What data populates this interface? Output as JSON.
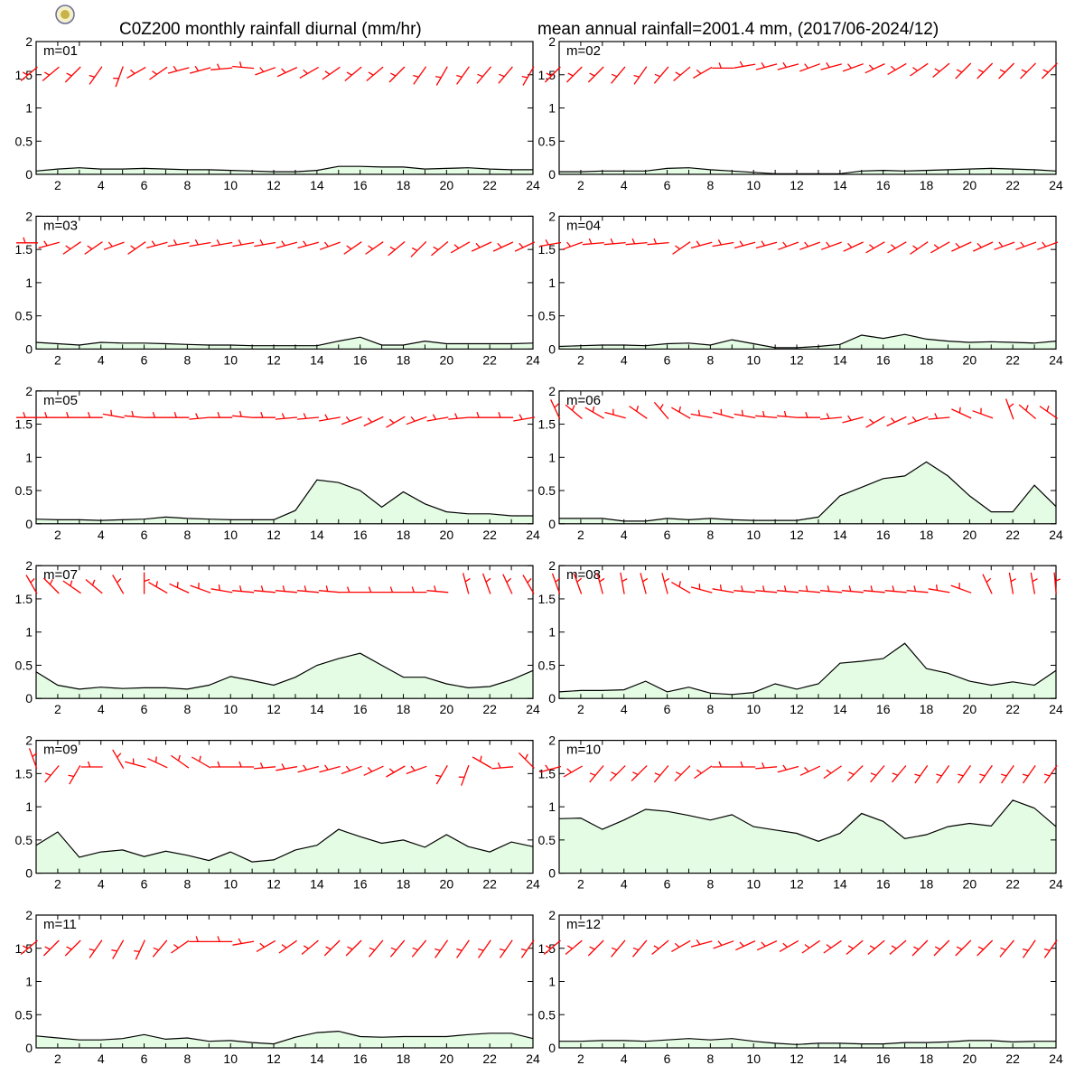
{
  "header": {
    "title_left": "C0Z200 monthly rainfall diurnal (mm/hr)",
    "title_right": "mean annual rainfall=2001.4 mm, (2017/06-2024/12)",
    "logo": "station-seal-icon"
  },
  "colors": {
    "fill": "#e4fce4",
    "line": "#000000",
    "barb": "#ff0000",
    "frame": "#000000"
  },
  "chart_data": {
    "type": "area",
    "x": [
      1,
      2,
      3,
      4,
      5,
      6,
      7,
      8,
      9,
      10,
      11,
      12,
      13,
      14,
      15,
      16,
      17,
      18,
      19,
      20,
      21,
      22,
      23,
      24
    ],
    "x_ticks": [
      "2",
      "4",
      "6",
      "8",
      "10",
      "12",
      "14",
      "16",
      "18",
      "20",
      "22",
      "24"
    ],
    "y_ticks": [
      "0",
      "0.5",
      "1",
      "1.5",
      "2"
    ],
    "ylim": [
      0,
      2
    ],
    "xlim": [
      1,
      24
    ],
    "panels": [
      {
        "label": "m=01",
        "values": [
          0.05,
          0.08,
          0.1,
          0.08,
          0.08,
          0.09,
          0.08,
          0.07,
          0.07,
          0.06,
          0.05,
          0.04,
          0.04,
          0.06,
          0.12,
          0.12,
          0.11,
          0.11,
          0.08,
          0.09,
          0.1,
          0.08,
          0.07,
          0.07
        ],
        "wind_dir": [
          230,
          230,
          225,
          215,
          200,
          240,
          235,
          255,
          255,
          265,
          275,
          250,
          245,
          240,
          235,
          230,
          230,
          225,
          215,
          210,
          215,
          220,
          220,
          210
        ]
      },
      {
        "label": "m=02",
        "values": [
          0.04,
          0.04,
          0.05,
          0.05,
          0.05,
          0.09,
          0.1,
          0.07,
          0.05,
          0.03,
          0.01,
          0.01,
          0.01,
          0.01,
          0.05,
          0.06,
          0.05,
          0.06,
          0.07,
          0.08,
          0.09,
          0.08,
          0.07,
          0.05
        ],
        "wind_dir": [
          225,
          225,
          225,
          220,
          215,
          220,
          230,
          240,
          270,
          260,
          255,
          255,
          250,
          255,
          250,
          245,
          240,
          235,
          230,
          225,
          225,
          225,
          225,
          225
        ],
        "barb_rows": [
          0,
          0,
          0,
          0,
          0,
          0,
          0,
          0,
          0,
          1,
          1,
          1,
          1,
          1,
          1,
          1,
          1,
          1,
          1,
          1,
          1,
          1,
          1,
          1
        ]
      },
      {
        "label": "m=03",
        "values": [
          0.1,
          0.08,
          0.06,
          0.1,
          0.09,
          0.09,
          0.08,
          0.07,
          0.06,
          0.06,
          0.05,
          0.05,
          0.05,
          0.05,
          0.12,
          0.18,
          0.06,
          0.06,
          0.12,
          0.08,
          0.08,
          0.08,
          0.08,
          0.09
        ],
        "wind_dir": [
          270,
          255,
          235,
          235,
          250,
          235,
          255,
          260,
          260,
          260,
          260,
          260,
          255,
          255,
          250,
          235,
          235,
          230,
          225,
          230,
          240,
          245,
          245,
          245
        ]
      },
      {
        "label": "m=04",
        "values": [
          0.04,
          0.05,
          0.06,
          0.06,
          0.05,
          0.08,
          0.09,
          0.06,
          0.14,
          0.08,
          0.02,
          0.02,
          0.04,
          0.07,
          0.21,
          0.16,
          0.22,
          0.15,
          0.12,
          0.1,
          0.11,
          0.1,
          0.09,
          0.12
        ],
        "wind_dir": [
          260,
          250,
          265,
          265,
          265,
          265,
          235,
          255,
          260,
          255,
          255,
          250,
          250,
          250,
          245,
          240,
          240,
          235,
          240,
          245,
          245,
          250,
          250,
          250
        ]
      },
      {
        "label": "m=05",
        "values": [
          0.07,
          0.06,
          0.06,
          0.05,
          0.06,
          0.07,
          0.1,
          0.08,
          0.07,
          0.06,
          0.06,
          0.06,
          0.2,
          0.66,
          0.62,
          0.5,
          0.25,
          0.48,
          0.3,
          0.18,
          0.15,
          0.15,
          0.12,
          0.12
        ],
        "wind_dir": [
          270,
          270,
          270,
          270,
          280,
          275,
          270,
          270,
          265,
          270,
          275,
          270,
          265,
          265,
          260,
          250,
          245,
          240,
          250,
          260,
          265,
          270,
          270,
          260
        ]
      },
      {
        "label": "m=06",
        "values": [
          0.08,
          0.08,
          0.08,
          0.04,
          0.04,
          0.08,
          0.06,
          0.08,
          0.06,
          0.05,
          0.05,
          0.05,
          0.1,
          0.42,
          0.55,
          0.68,
          0.72,
          0.93,
          0.72,
          0.42,
          0.18,
          0.18,
          0.58,
          0.26
        ],
        "wind_dir": [
          335,
          310,
          300,
          285,
          305,
          320,
          300,
          280,
          285,
          280,
          275,
          275,
          270,
          265,
          255,
          240,
          245,
          250,
          265,
          295,
          290,
          340,
          310,
          305
        ]
      },
      {
        "label": "m=07",
        "values": [
          0.4,
          0.2,
          0.14,
          0.17,
          0.15,
          0.16,
          0.16,
          0.14,
          0.2,
          0.33,
          0.27,
          0.2,
          0.32,
          0.5,
          0.6,
          0.68,
          0.5,
          0.32,
          0.32,
          0.22,
          0.16,
          0.18,
          0.28,
          0.42
        ],
        "wind_dir": [
          330,
          315,
          305,
          310,
          330,
          0,
          300,
          295,
          290,
          280,
          275,
          275,
          275,
          275,
          275,
          270,
          270,
          270,
          270,
          275,
          345,
          340,
          335,
          330
        ]
      },
      {
        "label": "m=08",
        "values": [
          0.1,
          0.12,
          0.12,
          0.13,
          0.26,
          0.1,
          0.17,
          0.08,
          0.06,
          0.09,
          0.22,
          0.14,
          0.22,
          0.53,
          0.56,
          0.6,
          0.83,
          0.45,
          0.38,
          0.26,
          0.2,
          0.25,
          0.2,
          0.42
        ],
        "wind_dir": [
          340,
          340,
          345,
          350,
          345,
          345,
          300,
          285,
          280,
          275,
          275,
          275,
          275,
          275,
          275,
          275,
          275,
          275,
          280,
          290,
          335,
          350,
          350,
          355
        ]
      },
      {
        "label": "m=09",
        "values": [
          0.42,
          0.62,
          0.24,
          0.32,
          0.35,
          0.25,
          0.33,
          0.27,
          0.19,
          0.32,
          0.17,
          0.2,
          0.35,
          0.42,
          0.66,
          0.55,
          0.45,
          0.5,
          0.39,
          0.58,
          0.4,
          0.32,
          0.47,
          0.4
        ],
        "wind_dir": [
          340,
          220,
          210,
          270,
          330,
          285,
          295,
          305,
          300,
          270,
          270,
          265,
          260,
          255,
          255,
          250,
          245,
          240,
          250,
          210,
          200,
          300,
          265,
          315
        ]
      },
      {
        "label": "m=10",
        "values": [
          0.82,
          0.83,
          0.66,
          0.8,
          0.96,
          0.93,
          0.87,
          0.8,
          0.88,
          0.7,
          0.65,
          0.6,
          0.48,
          0.6,
          0.9,
          0.78,
          0.52,
          0.58,
          0.7,
          0.75,
          0.71,
          1.1,
          0.98,
          0.7
        ],
        "wind_dir": [
          255,
          240,
          220,
          225,
          225,
          220,
          225,
          235,
          270,
          270,
          265,
          255,
          245,
          235,
          225,
          220,
          220,
          215,
          215,
          215,
          215,
          215,
          215,
          215
        ]
      },
      {
        "label": "m=11",
        "values": [
          0.18,
          0.15,
          0.12,
          0.12,
          0.14,
          0.2,
          0.13,
          0.15,
          0.1,
          0.11,
          0.08,
          0.06,
          0.16,
          0.23,
          0.25,
          0.17,
          0.16,
          0.17,
          0.17,
          0.17,
          0.2,
          0.22,
          0.22,
          0.14
        ],
        "wind_dir": [
          230,
          225,
          225,
          215,
          210,
          205,
          220,
          235,
          270,
          270,
          260,
          240,
          235,
          230,
          225,
          225,
          220,
          220,
          220,
          215,
          215,
          215,
          215,
          215
        ]
      },
      {
        "label": "m=12",
        "values": [
          0.1,
          0.1,
          0.11,
          0.11,
          0.1,
          0.12,
          0.14,
          0.12,
          0.14,
          0.1,
          0.07,
          0.05,
          0.07,
          0.07,
          0.06,
          0.06,
          0.08,
          0.08,
          0.09,
          0.11,
          0.11,
          0.09,
          0.1,
          0.1
        ],
        "wind_dir": [
          230,
          230,
          225,
          220,
          220,
          230,
          240,
          255,
          250,
          245,
          245,
          240,
          235,
          235,
          230,
          230,
          230,
          225,
          225,
          225,
          225,
          220,
          215,
          215
        ]
      }
    ]
  }
}
